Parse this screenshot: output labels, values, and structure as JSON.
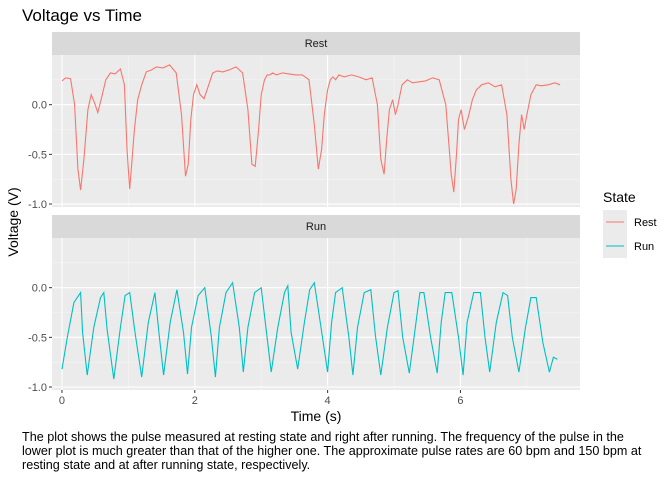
{
  "chart_data": {
    "type": "line",
    "title": "Voltage vs Time",
    "xlabel": "Time (s)",
    "ylabel": "Voltage (V)",
    "xlim": [
      -0.15,
      7.8
    ],
    "ylim": [
      -1.03,
      0.5
    ],
    "x_ticks": [
      0,
      2,
      4,
      6
    ],
    "y_ticks": [
      0.0,
      -0.5,
      -1.0
    ],
    "y_tick_labels": [
      "0.0",
      "-0.5",
      "-1.0"
    ],
    "grid": true,
    "facets": [
      "Rest",
      "Run"
    ],
    "legend": {
      "title": "State",
      "position": "right",
      "entries": [
        "Rest",
        "Run"
      ]
    },
    "series": [
      {
        "name": "Rest",
        "facet": "Rest",
        "color": "#F8766D",
        "x": [
          0.0,
          0.06,
          0.13,
          0.19,
          0.24,
          0.28,
          0.33,
          0.39,
          0.44,
          0.49,
          0.54,
          0.6,
          0.66,
          0.73,
          0.8,
          0.88,
          0.94,
          0.98,
          1.02,
          1.05,
          1.09,
          1.14,
          1.2,
          1.27,
          1.35,
          1.42,
          1.52,
          1.62,
          1.72,
          1.8,
          1.86,
          1.9,
          1.94,
          1.98,
          2.03,
          2.08,
          2.14,
          2.21,
          2.27,
          2.34,
          2.42,
          2.52,
          2.62,
          2.72,
          2.8,
          2.86,
          2.91,
          2.96,
          3.0,
          3.05,
          3.09,
          3.13,
          3.17,
          3.23,
          3.32,
          3.42,
          3.52,
          3.62,
          3.72,
          3.8,
          3.86,
          3.91,
          3.95,
          4.0,
          4.04,
          4.08,
          4.12,
          4.17,
          4.25,
          4.36,
          4.47,
          4.58,
          4.67,
          4.75,
          4.8,
          4.85,
          4.89,
          4.93,
          4.98,
          5.02,
          5.06,
          5.12,
          5.2,
          5.28,
          5.38,
          5.48,
          5.58,
          5.68,
          5.78,
          5.86,
          5.9,
          5.94,
          5.97,
          6.01,
          6.06,
          6.12,
          6.18,
          6.24,
          6.32,
          6.42,
          6.52,
          6.62,
          6.7,
          6.76,
          6.8,
          6.84,
          6.88,
          6.92,
          6.96,
          7.0,
          7.06,
          7.14,
          7.22,
          7.32,
          7.42,
          7.5
        ],
        "y": [
          0.24,
          0.27,
          0.26,
          0.0,
          -0.65,
          -0.86,
          -0.55,
          -0.05,
          0.1,
          0.02,
          -0.08,
          0.08,
          0.25,
          0.32,
          0.31,
          0.36,
          0.2,
          -0.45,
          -0.85,
          -0.6,
          -0.25,
          0.05,
          0.2,
          0.33,
          0.35,
          0.38,
          0.37,
          0.4,
          0.32,
          -0.1,
          -0.72,
          -0.6,
          -0.15,
          0.1,
          0.2,
          0.1,
          0.06,
          0.2,
          0.32,
          0.34,
          0.33,
          0.35,
          0.38,
          0.32,
          -0.05,
          -0.6,
          -0.62,
          -0.25,
          0.1,
          0.25,
          0.3,
          0.3,
          0.32,
          0.3,
          0.32,
          0.31,
          0.3,
          0.3,
          0.25,
          -0.2,
          -0.65,
          -0.45,
          -0.1,
          0.15,
          0.25,
          0.28,
          0.25,
          0.3,
          0.28,
          0.3,
          0.28,
          0.25,
          0.27,
          0.0,
          -0.55,
          -0.7,
          -0.35,
          -0.05,
          0.05,
          -0.1,
          0.0,
          0.2,
          0.25,
          0.22,
          0.23,
          0.24,
          0.27,
          0.25,
          0.0,
          -0.7,
          -0.88,
          -0.5,
          -0.15,
          -0.05,
          -0.25,
          -0.12,
          0.05,
          0.15,
          0.2,
          0.22,
          0.18,
          0.2,
          -0.1,
          -0.75,
          -1.0,
          -0.85,
          -0.4,
          -0.1,
          -0.25,
          -0.1,
          0.1,
          0.2,
          0.19,
          0.2,
          0.22,
          0.2
        ]
      },
      {
        "name": "Run",
        "facet": "Run",
        "color": "#00BFC4",
        "x": [
          0.0,
          0.08,
          0.18,
          0.28,
          0.31,
          0.38,
          0.48,
          0.58,
          0.63,
          0.68,
          0.78,
          0.88,
          0.95,
          1.02,
          1.1,
          1.2,
          1.3,
          1.4,
          1.46,
          1.53,
          1.63,
          1.73,
          1.83,
          1.89,
          1.95,
          2.05,
          2.15,
          2.25,
          2.31,
          2.37,
          2.47,
          2.57,
          2.67,
          2.73,
          2.8,
          2.9,
          3.0,
          3.07,
          3.15,
          3.25,
          3.35,
          3.4,
          3.45,
          3.55,
          3.65,
          3.73,
          3.8,
          3.9,
          4.0,
          4.06,
          4.12,
          4.22,
          4.32,
          4.38,
          4.45,
          4.55,
          4.65,
          4.72,
          4.8,
          4.9,
          5.0,
          5.06,
          5.13,
          5.23,
          5.33,
          5.39,
          5.45,
          5.55,
          5.65,
          5.71,
          5.77,
          5.87,
          5.97,
          6.04,
          6.1,
          6.2,
          6.3,
          6.37,
          6.44,
          6.54,
          6.64,
          6.71,
          6.78,
          6.88,
          6.98,
          7.06,
          7.14,
          7.24,
          7.34,
          7.4,
          7.46
        ],
        "y": [
          -0.82,
          -0.5,
          -0.15,
          -0.05,
          -0.45,
          -0.88,
          -0.4,
          -0.1,
          -0.05,
          -0.42,
          -0.92,
          -0.4,
          -0.08,
          -0.05,
          -0.45,
          -0.9,
          -0.35,
          -0.05,
          -0.45,
          -0.88,
          -0.35,
          -0.02,
          -0.45,
          -0.87,
          -0.4,
          -0.08,
          0.0,
          -0.5,
          -0.9,
          -0.4,
          -0.05,
          0.05,
          -0.4,
          -0.85,
          -0.4,
          -0.05,
          0.0,
          -0.4,
          -0.85,
          -0.4,
          -0.05,
          0.02,
          -0.45,
          -0.82,
          -0.35,
          -0.02,
          0.05,
          -0.4,
          -0.85,
          -0.35,
          -0.05,
          0.0,
          -0.5,
          -0.88,
          -0.4,
          -0.05,
          -0.02,
          -0.48,
          -0.88,
          -0.4,
          -0.05,
          -0.03,
          -0.5,
          -0.86,
          -0.35,
          -0.05,
          -0.05,
          -0.5,
          -0.86,
          -0.35,
          -0.05,
          -0.05,
          -0.5,
          -0.88,
          -0.35,
          -0.05,
          -0.05,
          -0.5,
          -0.85,
          -0.35,
          -0.05,
          -0.08,
          -0.5,
          -0.85,
          -0.4,
          -0.1,
          -0.1,
          -0.55,
          -0.85,
          -0.7,
          -0.72
        ]
      }
    ]
  },
  "caption": "The plot shows the pulse measured at resting state and right after running. The frequency of the pulse in the lower plot is much greater than that of the higher one. The approximate pulse rates are 60 bpm and 150 bpm at resting state and at after running state, respectively."
}
